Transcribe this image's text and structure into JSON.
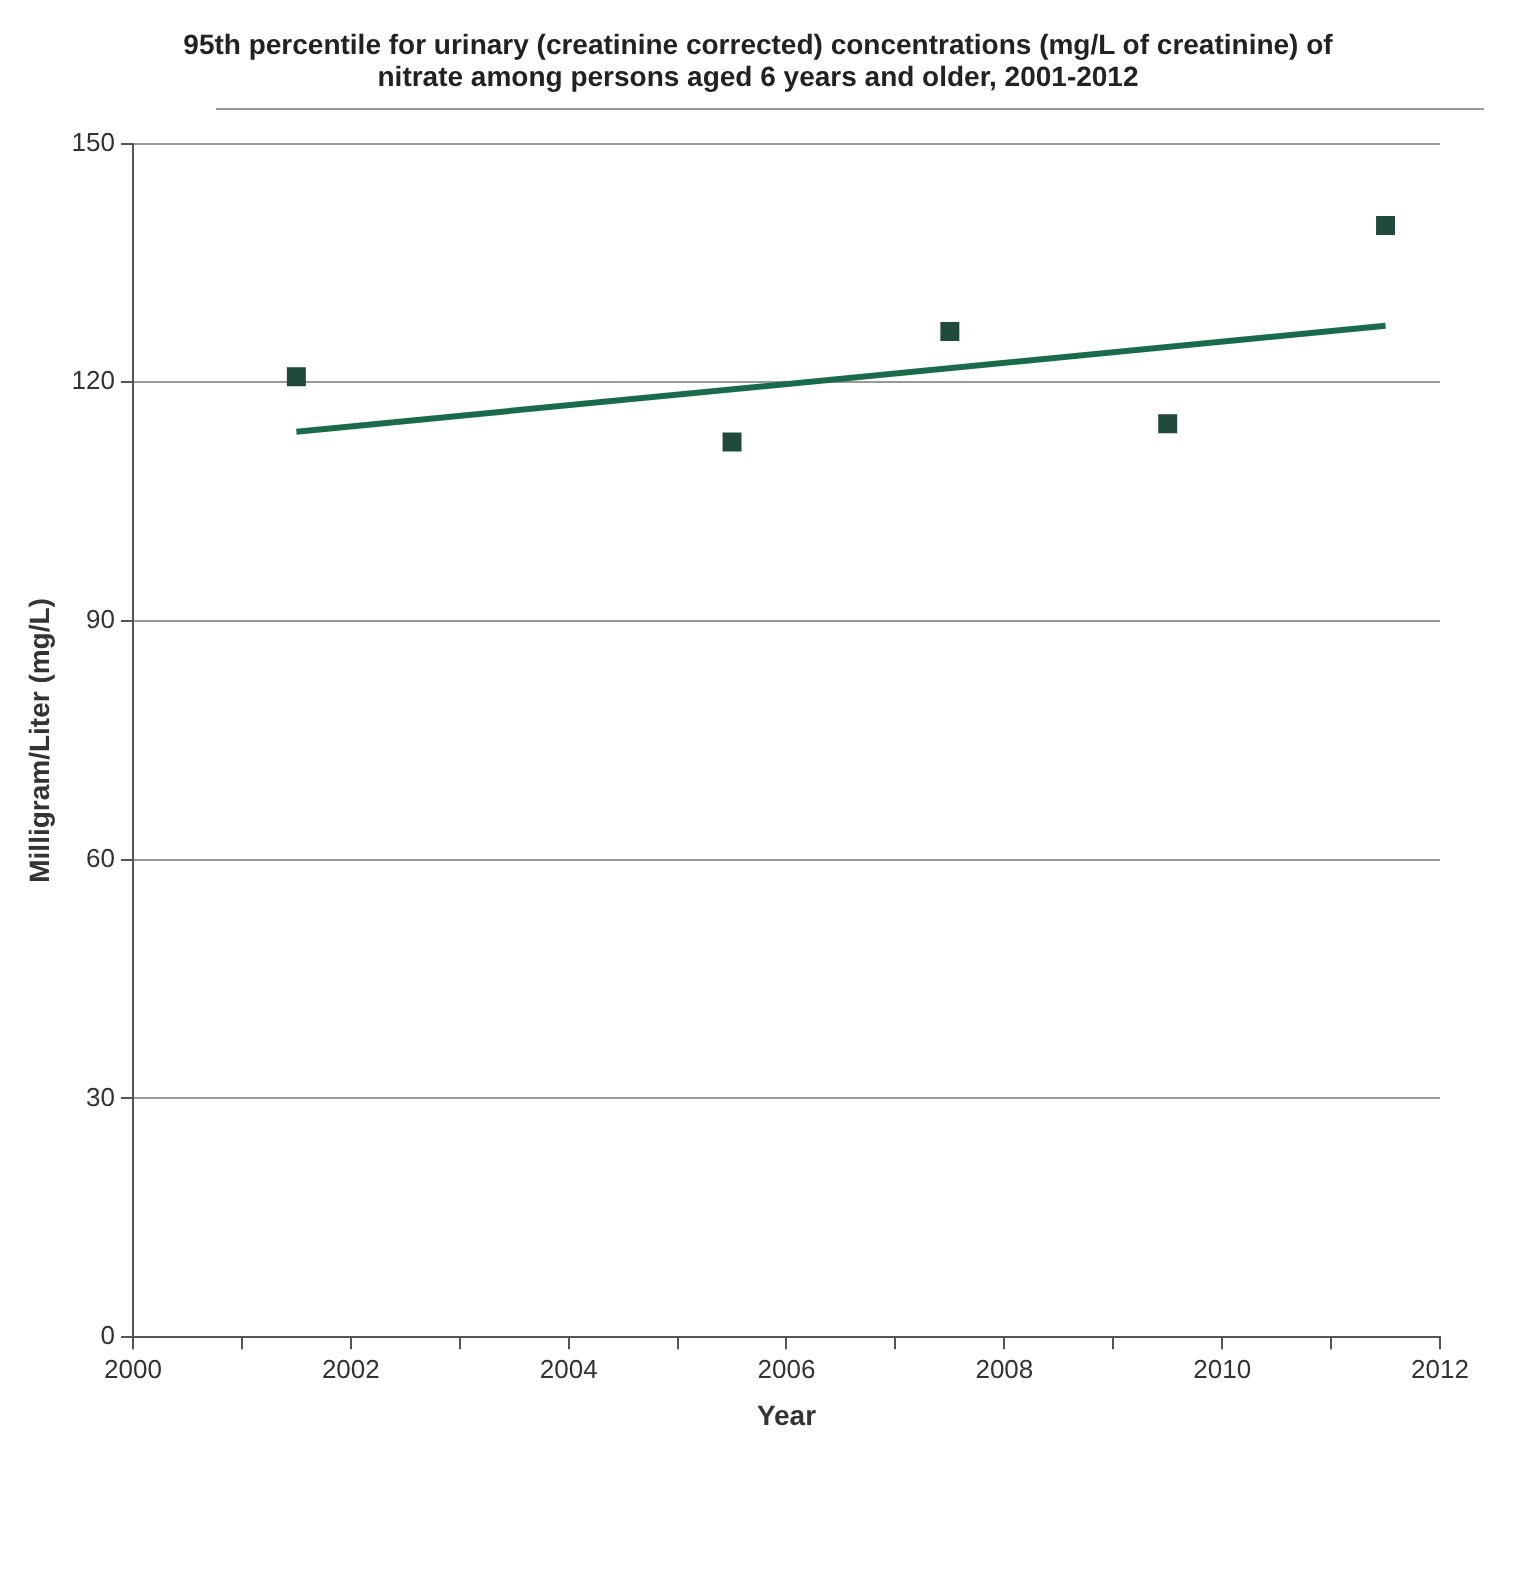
{
  "chart_data": {
    "type": "scatter",
    "title": "95th percentile for urinary (creatinine corrected) concentrations (mg/L of creatinine) of nitrate among persons aged 6 years and older, 2001-2012",
    "xlabel": "Year",
    "ylabel": "Milligram/Liter (mg/L)",
    "series": [
      {
        "color": "#1f4a3c",
        "x": [
          2001.5,
          2005.5,
          2007.5,
          2009.5,
          2011.5
        ],
        "values": [
          120.7,
          112.5,
          126.4,
          114.8,
          139.7
        ]
      },
      {
        "type": "line",
        "marker": "none",
        "color": "#1a6b4a",
        "x": [
          2001.5,
          2011.5
        ],
        "values": [
          113.8,
          127.1
        ]
      }
    ],
    "xlim": [
      2000,
      2012
    ],
    "xticks": [
      2000,
      {
        "value": 2001,
        "label": null
      },
      2002,
      {
        "value": 2003,
        "label": null
      },
      2004,
      {
        "value": 2005,
        "label": null
      },
      2006,
      {
        "value": 2007,
        "label": null
      },
      2008,
      {
        "value": 2009,
        "label": null
      },
      2010,
      {
        "value": 2011,
        "label": null
      },
      2012
    ],
    "ylim": [
      0,
      150
    ],
    "yticks": [
      0,
      30,
      60,
      90,
      120,
      150
    ],
    "grid": "y",
    "legend": false,
    "marker": "square"
  }
}
